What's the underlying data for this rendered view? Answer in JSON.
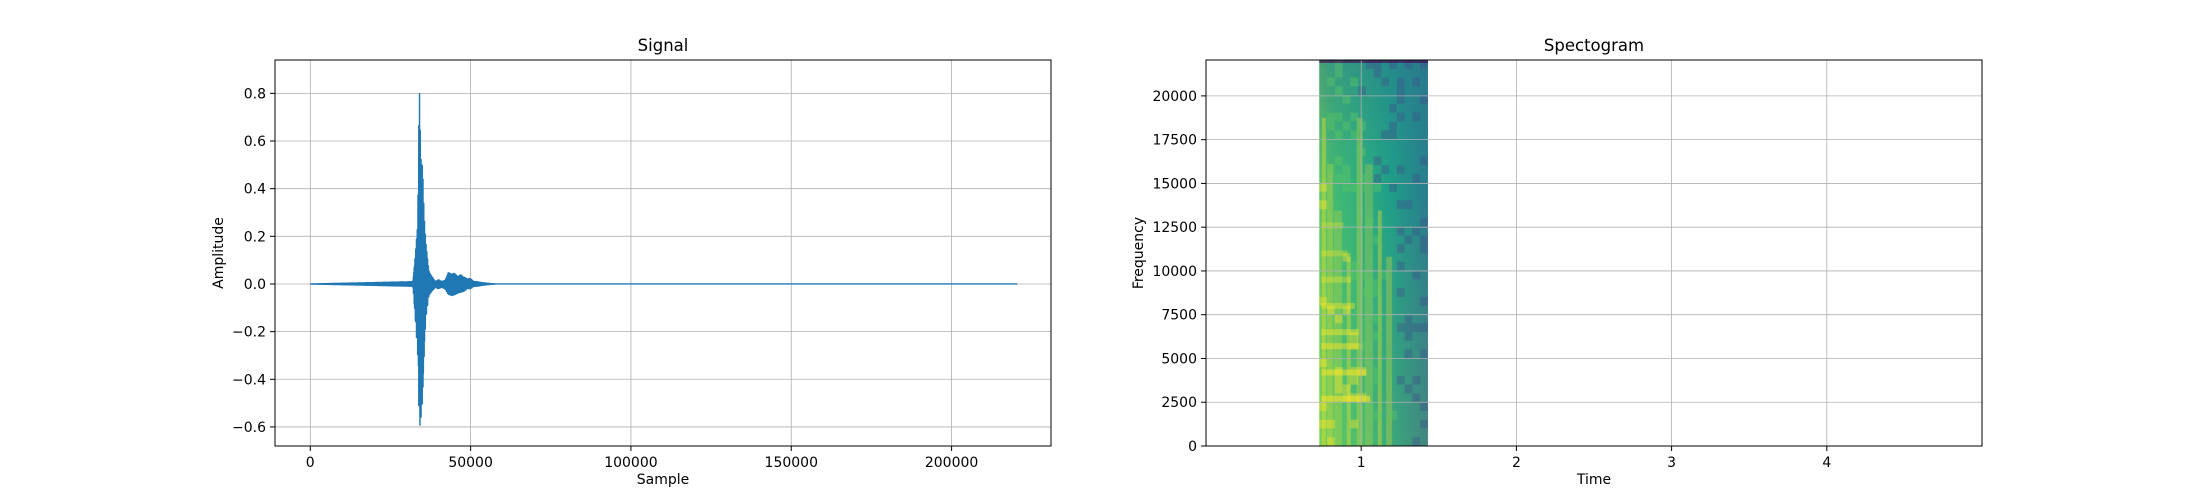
{
  "chart_data": [
    {
      "type": "line",
      "title": "Signal",
      "xlabel": "Sample",
      "ylabel": "Amplitude",
      "xlim": [
        -11000,
        231000
      ],
      "ylim": [
        -0.68,
        0.94
      ],
      "grid": true,
      "series_color": "#1f77b4",
      "xticks": [
        0,
        50000,
        100000,
        150000,
        200000
      ],
      "xtick_labels": [
        "0",
        "50000",
        "100000",
        "150000",
        "200000"
      ],
      "yticks": [
        -0.6,
        -0.4,
        -0.2,
        0.0,
        0.2,
        0.4,
        0.6,
        0.8
      ],
      "ytick_labels": [
        "−0.6",
        "−0.4",
        "−0.2",
        "0.0",
        "0.2",
        "0.4",
        "0.6",
        "0.8"
      ],
      "envelope": {
        "x": [
          0,
          32000,
          33500,
          34000,
          34500,
          35000,
          35500,
          36000,
          37000,
          38000,
          39000,
          40000,
          41000,
          42000,
          43000,
          44000,
          45000,
          46000,
          47000,
          48000,
          49000,
          50000,
          51000,
          52000,
          54000,
          56000,
          58000,
          220500
        ],
        "upper": [
          0.0,
          0.01,
          0.25,
          0.87,
          0.58,
          0.55,
          0.3,
          0.18,
          0.06,
          0.03,
          0.01,
          0.02,
          0.01,
          0.015,
          0.05,
          0.04,
          0.05,
          0.03,
          0.04,
          0.03,
          0.02,
          0.025,
          0.01,
          0.01,
          0.005,
          0.002,
          0.0,
          0.0
        ],
        "lower": [
          0.0,
          -0.01,
          -0.3,
          -0.61,
          -0.58,
          -0.52,
          -0.32,
          -0.15,
          -0.05,
          -0.03,
          -0.015,
          -0.02,
          -0.015,
          -0.02,
          -0.045,
          -0.05,
          -0.045,
          -0.04,
          -0.035,
          -0.03,
          -0.02,
          -0.02,
          -0.01,
          -0.01,
          -0.005,
          -0.002,
          0.0,
          0.0
        ]
      }
    },
    {
      "type": "heatmap",
      "title": "Spectogram",
      "xlabel": "Time",
      "ylabel": "Frequency",
      "xlim": [
        0.0,
        5.0
      ],
      "ylim": [
        0,
        22050
      ],
      "grid": true,
      "xticks": [
        1,
        2,
        3,
        4
      ],
      "xtick_labels": [
        "1",
        "2",
        "3",
        "4"
      ],
      "yticks": [
        0,
        2500,
        5000,
        7500,
        10000,
        12500,
        15000,
        17500,
        20000
      ],
      "ytick_labels": [
        "0",
        "2500",
        "5000",
        "7500",
        "10000",
        "12500",
        "15000",
        "17500",
        "20000"
      ],
      "data_time_range": [
        0.73,
        1.43
      ],
      "colormap": [
        "#440154",
        "#3b528b",
        "#21918c",
        "#5ec962",
        "#fde725"
      ],
      "hot_columns": [
        0.76,
        0.8,
        0.85,
        0.92,
        0.99,
        1.05,
        1.12,
        1.18
      ],
      "hot_bands": [
        2700,
        4200,
        5700,
        6500,
        8000,
        9500,
        11000,
        12600
      ]
    }
  ]
}
